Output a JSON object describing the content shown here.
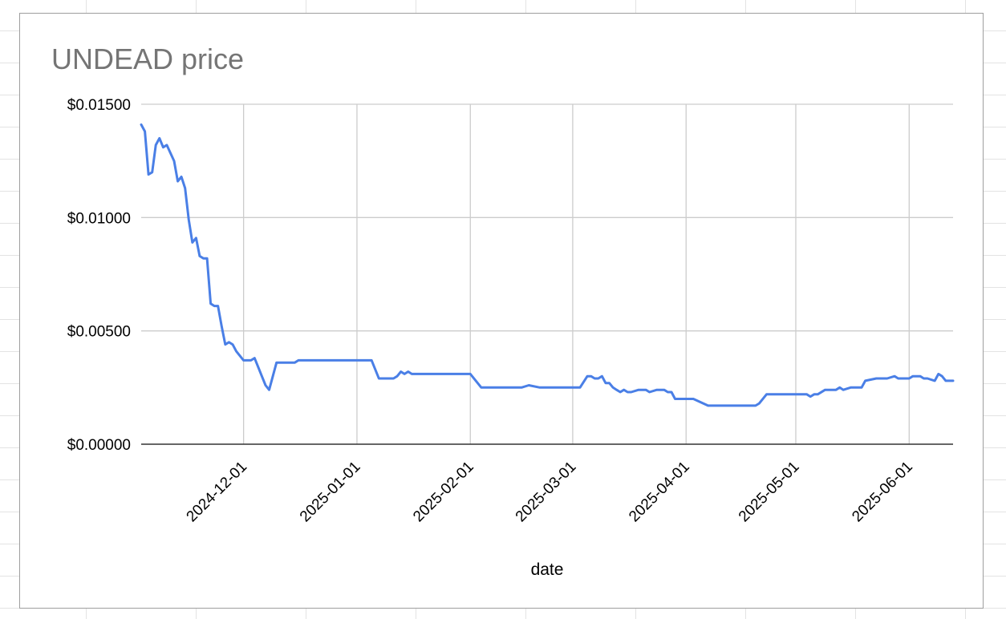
{
  "chart_data": {
    "type": "line",
    "title": "UNDEAD price",
    "xlabel": "date",
    "ylabel": "",
    "ylim": [
      0,
      0.015
    ],
    "xlim": [
      "2024-11-03",
      "2025-06-13"
    ],
    "y_ticks": [
      0,
      0.005,
      0.01,
      0.015
    ],
    "y_tick_labels": [
      "$0.00000",
      "$0.00500",
      "$0.01000",
      "$0.01500"
    ],
    "x_ticks": [
      "2024-12-01",
      "2025-01-01",
      "2025-02-01",
      "2025-03-01",
      "2025-04-01",
      "2025-05-01",
      "2025-06-01"
    ],
    "x_tick_labels": [
      "2024-12-01",
      "2025-01-01",
      "2025-02-01",
      "2025-03-01",
      "2025-04-01",
      "2025-05-01",
      "2025-06-01"
    ],
    "grid": true,
    "legend": "none",
    "color": "#4a7fe6",
    "x": [
      "2024-11-03",
      "2024-11-04",
      "2024-11-05",
      "2024-11-06",
      "2024-11-07",
      "2024-11-08",
      "2024-11-09",
      "2024-11-10",
      "2024-11-12",
      "2024-11-13",
      "2024-11-14",
      "2024-11-15",
      "2024-11-16",
      "2024-11-17",
      "2024-11-18",
      "2024-11-19",
      "2024-11-20",
      "2024-11-21",
      "2024-11-22",
      "2024-11-23",
      "2024-11-24",
      "2024-11-25",
      "2024-11-26",
      "2024-11-27",
      "2024-11-28",
      "2024-11-29",
      "2024-11-30",
      "2024-12-01",
      "2024-12-02",
      "2024-12-03",
      "2024-12-04",
      "2024-12-05",
      "2024-12-06",
      "2024-12-07",
      "2024-12-08",
      "2024-12-10",
      "2024-12-12",
      "2024-12-13",
      "2024-12-15",
      "2024-12-16",
      "2024-12-18",
      "2024-12-19",
      "2024-12-21",
      "2024-12-22",
      "2024-12-25",
      "2024-12-30",
      "2025-01-04",
      "2025-01-05",
      "2025-01-07",
      "2025-01-11",
      "2025-01-12",
      "2025-01-13",
      "2025-01-14",
      "2025-01-15",
      "2025-01-16",
      "2025-01-17",
      "2025-01-20",
      "2025-01-25",
      "2025-01-31",
      "2025-02-01",
      "2025-02-04",
      "2025-02-08",
      "2025-02-12",
      "2025-02-14",
      "2025-02-15",
      "2025-02-17",
      "2025-02-20",
      "2025-02-22",
      "2025-02-26",
      "2025-02-28",
      "2025-03-02",
      "2025-03-03",
      "2025-03-05",
      "2025-03-06",
      "2025-03-07",
      "2025-03-08",
      "2025-03-09",
      "2025-03-10",
      "2025-03-11",
      "2025-03-12",
      "2025-03-13",
      "2025-03-14",
      "2025-03-15",
      "2025-03-16",
      "2025-03-17",
      "2025-03-19",
      "2025-03-21",
      "2025-03-22",
      "2025-03-24",
      "2025-03-26",
      "2025-03-27",
      "2025-03-28",
      "2025-03-29",
      "2025-04-01",
      "2025-04_02",
      "2025-04-03",
      "2025-04-07",
      "2025-04-10",
      "2025-04-13",
      "2025-04-15",
      "2025-04-17",
      "2025-04-19",
      "2025-04-20",
      "2025-04-21",
      "2025-04-23",
      "2025-04-25",
      "2025-04-30",
      "2025-05-01",
      "2025-05-03",
      "2025-05-04",
      "2025-05-05",
      "2025-05-06",
      "2025-05-07",
      "2025-05-09",
      "2025-05-10",
      "2025-05-11",
      "2025-05-12",
      "2025-05-13",
      "2025-05-14",
      "2025-05-16",
      "2025-05-17",
      "2025-05-19",
      "2025-05-20",
      "2025-05-23",
      "2025-05-26",
      "2025-05-28",
      "2025-05-29",
      "2025-05-30",
      "2025-06-01",
      "2025-06-02",
      "2025-06-03",
      "2025-06-04",
      "2025-06-05",
      "2025-06-06",
      "2025-06-08",
      "2025-06-09",
      "2025-06-10",
      "2025-06-11",
      "2025-06-13"
    ],
    "values": [
      0.0141,
      0.0138,
      0.0119,
      0.012,
      0.0132,
      0.0135,
      0.0131,
      0.0132,
      0.0125,
      0.0116,
      0.0118,
      0.0113,
      0.0099,
      0.0089,
      0.0091,
      0.0083,
      0.0082,
      0.0082,
      0.0062,
      0.0061,
      0.0061,
      0.0052,
      0.0044,
      0.0045,
      0.0044,
      0.0041,
      0.0039,
      0.0037,
      0.0037,
      0.0037,
      0.0038,
      0.0034,
      0.003,
      0.0026,
      0.0024,
      0.0036,
      0.0036,
      0.0036,
      0.0036,
      0.0037,
      0.0037,
      0.0037,
      0.0037,
      0.0037,
      0.0037,
      0.0037,
      0.0037,
      0.0037,
      0.0029,
      0.0029,
      0.003,
      0.0032,
      0.0031,
      0.0032,
      0.0031,
      0.0031,
      0.0031,
      0.0031,
      0.0031,
      0.0031,
      0.0025,
      0.0025,
      0.0025,
      0.0025,
      0.0025,
      0.0026,
      0.0025,
      0.0025,
      0.0025,
      0.0025,
      0.0025,
      0.0025,
      0.003,
      0.003,
      0.0029,
      0.0029,
      0.003,
      0.0027,
      0.0027,
      0.0025,
      0.0024,
      0.0023,
      0.0024,
      0.0023,
      0.0023,
      0.0024,
      0.0024,
      0.0023,
      0.0024,
      0.0024,
      0.0023,
      0.0023,
      0.002,
      0.002,
      0.002,
      0.002,
      0.0017,
      0.0017,
      0.0017,
      0.0017,
      0.0017,
      0.0017,
      0.0017,
      0.0018,
      0.0022,
      0.0022,
      0.0022,
      0.0022,
      0.0022,
      0.0022,
      0.0021,
      0.0022,
      0.0022,
      0.0024,
      0.0024,
      0.0024,
      0.0024,
      0.0025,
      0.0024,
      0.0025,
      0.0025,
      0.0025,
      0.0028,
      0.0029,
      0.0029,
      0.003,
      0.0029,
      0.0029,
      0.0029,
      0.003,
      0.003,
      0.003,
      0.0029,
      0.0029,
      0.0028,
      0.0031,
      0.003,
      0.0028,
      0.0028
    ]
  }
}
